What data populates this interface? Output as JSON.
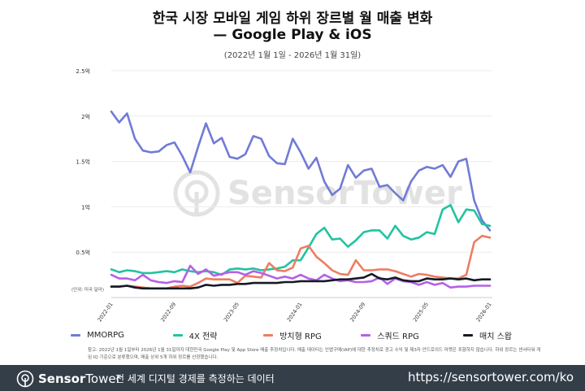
{
  "header": {
    "title_line1": "한국 시장 모바일 게임 하위 장르별 월 매출 변화",
    "title_line2": "— Google Play & iOS",
    "subtitle": "(2022년 1월 1일 - 2026년 1월 31일)"
  },
  "watermark": "SensorTower",
  "note": "참고: 2022년 1월 1일부터 2026년 1월 31일까지 대한민국 Google Play 및 App Store 매출 추정치입니다. 매출 데이터는 인앱구매(IAP)에 대한 추정치로 광고 수익 및 제3자 안드로이드 마켓은 포함하지 않습니다. 하위 장르는 센서타워 게임 IQ 기준으로 분류했으며, 매출 상위 5개 하위 장르를 선정했습니다.",
  "footer": {
    "brand_bold": "Sensor",
    "brand_light": "Tower",
    "tagline": "전 세계 디지털 경제를 측정하는 데이터",
    "url": "https://sensortower.com/ko"
  },
  "chart_data": {
    "type": "line",
    "title": "한국 시장 모바일 게임 하위 장르별 월 매출 변화 — Google Play & iOS",
    "subtitle": "(2022년 1월 1일 - 2026년 1월 31일)",
    "unit_label": "(단위: 미국 달러)",
    "x_start": "2022-01",
    "x_end": "2026-01",
    "x_ticks": [
      "2022-01",
      "2022-09",
      "2023-05",
      "2024-01",
      "2024-09",
      "2025-05",
      "2026-01"
    ],
    "y_ticks": [
      {
        "v": 0.5,
        "label": "0.5억"
      },
      {
        "v": 1,
        "label": "1억"
      },
      {
        "v": 1.5,
        "label": "1.5억"
      },
      {
        "v": 2,
        "label": "2억"
      },
      {
        "v": 2.5,
        "label": "2.5억"
      }
    ],
    "ylim": [
      0,
      2.5
    ],
    "y_unit": "억 (USD)",
    "grid": true,
    "legend_position": "bottom",
    "series": [
      {
        "name": "MMORPG",
        "color": "#717bd6",
        "values": [
          2.05,
          1.93,
          2.03,
          1.75,
          1.62,
          1.6,
          1.61,
          1.68,
          1.71,
          1.56,
          1.38,
          1.66,
          1.92,
          1.7,
          1.76,
          1.55,
          1.53,
          1.58,
          1.78,
          1.75,
          1.56,
          1.48,
          1.47,
          1.75,
          1.6,
          1.42,
          1.54,
          1.28,
          1.13,
          1.2,
          1.46,
          1.32,
          1.4,
          1.42,
          1.22,
          1.24,
          1.15,
          1.07,
          1.28,
          1.4,
          1.44,
          1.42,
          1.46,
          1.33,
          1.5,
          1.53,
          1.07,
          0.85,
          0.74
        ]
      },
      {
        "name": "4X 전략",
        "color": "#22c3a0",
        "values": [
          0.31,
          0.28,
          0.3,
          0.29,
          0.27,
          0.27,
          0.28,
          0.29,
          0.28,
          0.31,
          0.29,
          0.28,
          0.29,
          0.28,
          0.25,
          0.31,
          0.32,
          0.31,
          0.32,
          0.3,
          0.31,
          0.32,
          0.34,
          0.41,
          0.41,
          0.55,
          0.7,
          0.77,
          0.64,
          0.65,
          0.56,
          0.63,
          0.72,
          0.74,
          0.74,
          0.65,
          0.79,
          0.68,
          0.64,
          0.66,
          0.72,
          0.7,
          0.97,
          1.02,
          0.83,
          0.97,
          0.96,
          0.81,
          0.79
        ]
      },
      {
        "name": "방치형 RPG",
        "color": "#ee7d63",
        "values": [
          0.12,
          0.12,
          0.13,
          0.12,
          0.11,
          0.1,
          0.1,
          0.1,
          0.12,
          0.13,
          0.12,
          0.16,
          0.21,
          0.2,
          0.2,
          0.2,
          0.16,
          0.24,
          0.23,
          0.22,
          0.38,
          0.3,
          0.29,
          0.33,
          0.54,
          0.57,
          0.45,
          0.38,
          0.3,
          0.26,
          0.25,
          0.41,
          0.3,
          0.3,
          0.31,
          0.31,
          0.29,
          0.26,
          0.23,
          0.26,
          0.25,
          0.23,
          0.22,
          0.21,
          0.21,
          0.25,
          0.61,
          0.68,
          0.66
        ]
      },
      {
        "name": "스쿼드 RPG",
        "color": "#b560e8",
        "values": [
          0.25,
          0.21,
          0.21,
          0.19,
          0.25,
          0.19,
          0.17,
          0.16,
          0.18,
          0.17,
          0.35,
          0.26,
          0.31,
          0.24,
          0.26,
          0.28,
          0.28,
          0.25,
          0.29,
          0.27,
          0.24,
          0.21,
          0.23,
          0.21,
          0.25,
          0.21,
          0.19,
          0.25,
          0.21,
          0.18,
          0.19,
          0.17,
          0.17,
          0.18,
          0.22,
          0.15,
          0.21,
          0.18,
          0.17,
          0.14,
          0.17,
          0.14,
          0.16,
          0.11,
          0.12,
          0.12,
          0.13,
          0.13,
          0.13
        ]
      },
      {
        "name": "매치 스왑",
        "color": "#141a26",
        "values": [
          0.12,
          0.12,
          0.13,
          0.11,
          0.1,
          0.1,
          0.1,
          0.1,
          0.1,
          0.1,
          0.1,
          0.11,
          0.14,
          0.13,
          0.14,
          0.14,
          0.15,
          0.15,
          0.16,
          0.16,
          0.16,
          0.16,
          0.17,
          0.17,
          0.18,
          0.18,
          0.18,
          0.18,
          0.19,
          0.2,
          0.2,
          0.21,
          0.22,
          0.26,
          0.21,
          0.2,
          0.22,
          0.19,
          0.18,
          0.18,
          0.21,
          0.2,
          0.2,
          0.21,
          0.2,
          0.21,
          0.19,
          0.2,
          0.2
        ]
      }
    ]
  }
}
